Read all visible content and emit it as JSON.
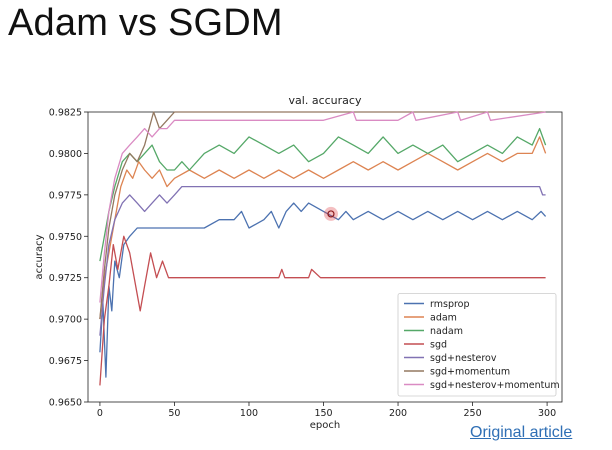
{
  "slide": {
    "title": "Adam vs SGDM",
    "source_link": "Original article"
  },
  "chart_data": {
    "type": "line",
    "title": "val. accuracy",
    "xlabel": "epoch",
    "ylabel": "accuracy",
    "xlim": [
      -8,
      310
    ],
    "ylim": [
      0.965,
      0.9825
    ],
    "xticks": [
      0,
      50,
      100,
      150,
      200,
      250,
      300
    ],
    "yticks": [
      0.965,
      0.9675,
      0.97,
      0.9725,
      0.975,
      0.9775,
      0.98,
      0.9825
    ],
    "ytick_labels": [
      "0.9650",
      "0.9675",
      "0.9700",
      "0.9725",
      "0.9750",
      "0.9775",
      "0.9800",
      "0.9825"
    ],
    "grid": false,
    "legend": "bottom-right",
    "marker": {
      "x": 155,
      "y": 0.97635,
      "color": "#e0474c"
    },
    "series": [
      {
        "name": "rmsprop",
        "color": "#4c72b0",
        "points": [
          [
            0,
            0.968
          ],
          [
            2,
            0.971
          ],
          [
            4,
            0.9665
          ],
          [
            6,
            0.972
          ],
          [
            8,
            0.9705
          ],
          [
            10,
            0.9735
          ],
          [
            13,
            0.9725
          ],
          [
            16,
            0.9745
          ],
          [
            20,
            0.975
          ],
          [
            25,
            0.9755
          ],
          [
            30,
            0.9755
          ],
          [
            40,
            0.9755
          ],
          [
            50,
            0.9755
          ],
          [
            60,
            0.9755
          ],
          [
            70,
            0.9755
          ],
          [
            80,
            0.976
          ],
          [
            90,
            0.976
          ],
          [
            95,
            0.9765
          ],
          [
            100,
            0.9755
          ],
          [
            110,
            0.976
          ],
          [
            115,
            0.9765
          ],
          [
            120,
            0.9755
          ],
          [
            125,
            0.9765
          ],
          [
            130,
            0.977
          ],
          [
            135,
            0.9765
          ],
          [
            140,
            0.977
          ],
          [
            150,
            0.9765
          ],
          [
            160,
            0.976
          ],
          [
            165,
            0.9765
          ],
          [
            170,
            0.976
          ],
          [
            180,
            0.9765
          ],
          [
            190,
            0.976
          ],
          [
            200,
            0.9765
          ],
          [
            210,
            0.976
          ],
          [
            220,
            0.9765
          ],
          [
            230,
            0.976
          ],
          [
            240,
            0.9765
          ],
          [
            250,
            0.976
          ],
          [
            260,
            0.9765
          ],
          [
            270,
            0.976
          ],
          [
            280,
            0.9765
          ],
          [
            290,
            0.976
          ],
          [
            296,
            0.9765
          ],
          [
            299,
            0.9762
          ]
        ]
      },
      {
        "name": "adam",
        "color": "#dd8452",
        "points": [
          [
            0,
            0.97
          ],
          [
            3,
            0.9725
          ],
          [
            6,
            0.974
          ],
          [
            10,
            0.976
          ],
          [
            14,
            0.978
          ],
          [
            18,
            0.979
          ],
          [
            22,
            0.9785
          ],
          [
            26,
            0.9795
          ],
          [
            30,
            0.979
          ],
          [
            35,
            0.9785
          ],
          [
            40,
            0.979
          ],
          [
            45,
            0.978
          ],
          [
            50,
            0.9785
          ],
          [
            60,
            0.979
          ],
          [
            70,
            0.9785
          ],
          [
            80,
            0.979
          ],
          [
            90,
            0.9785
          ],
          [
            100,
            0.979
          ],
          [
            110,
            0.9785
          ],
          [
            120,
            0.979
          ],
          [
            130,
            0.9785
          ],
          [
            140,
            0.979
          ],
          [
            150,
            0.9785
          ],
          [
            160,
            0.979
          ],
          [
            170,
            0.9795
          ],
          [
            180,
            0.979
          ],
          [
            190,
            0.9795
          ],
          [
            200,
            0.979
          ],
          [
            210,
            0.9795
          ],
          [
            220,
            0.98
          ],
          [
            230,
            0.9795
          ],
          [
            240,
            0.979
          ],
          [
            250,
            0.9795
          ],
          [
            260,
            0.98
          ],
          [
            270,
            0.9795
          ],
          [
            280,
            0.98
          ],
          [
            290,
            0.98
          ],
          [
            295,
            0.981
          ],
          [
            299,
            0.98
          ]
        ]
      },
      {
        "name": "nadam",
        "color": "#55a868",
        "points": [
          [
            0,
            0.9735
          ],
          [
            3,
            0.975
          ],
          [
            6,
            0.9765
          ],
          [
            10,
            0.978
          ],
          [
            15,
            0.9795
          ],
          [
            20,
            0.98
          ],
          [
            25,
            0.9795
          ],
          [
            30,
            0.98
          ],
          [
            35,
            0.9805
          ],
          [
            40,
            0.9795
          ],
          [
            45,
            0.979
          ],
          [
            50,
            0.979
          ],
          [
            55,
            0.9795
          ],
          [
            60,
            0.979
          ],
          [
            70,
            0.98
          ],
          [
            80,
            0.9805
          ],
          [
            90,
            0.98
          ],
          [
            100,
            0.981
          ],
          [
            110,
            0.9805
          ],
          [
            120,
            0.98
          ],
          [
            130,
            0.9805
          ],
          [
            140,
            0.9795
          ],
          [
            150,
            0.98
          ],
          [
            160,
            0.981
          ],
          [
            170,
            0.9805
          ],
          [
            180,
            0.98
          ],
          [
            190,
            0.981
          ],
          [
            200,
            0.98
          ],
          [
            210,
            0.9805
          ],
          [
            220,
            0.98
          ],
          [
            230,
            0.9805
          ],
          [
            240,
            0.9795
          ],
          [
            250,
            0.98
          ],
          [
            260,
            0.9805
          ],
          [
            270,
            0.98
          ],
          [
            280,
            0.981
          ],
          [
            290,
            0.9805
          ],
          [
            295,
            0.9815
          ],
          [
            299,
            0.9805
          ]
        ]
      },
      {
        "name": "sgd",
        "color": "#c44e52",
        "points": [
          [
            0,
            0.966
          ],
          [
            3,
            0.97
          ],
          [
            6,
            0.972
          ],
          [
            9,
            0.9745
          ],
          [
            12,
            0.973
          ],
          [
            16,
            0.975
          ],
          [
            20,
            0.974
          ],
          [
            24,
            0.972
          ],
          [
            27,
            0.9705
          ],
          [
            30,
            0.972
          ],
          [
            34,
            0.974
          ],
          [
            38,
            0.9725
          ],
          [
            42,
            0.9735
          ],
          [
            46,
            0.9725
          ],
          [
            50,
            0.9725
          ],
          [
            60,
            0.9725
          ],
          [
            100,
            0.9725
          ],
          [
            120,
            0.9725
          ],
          [
            122,
            0.973
          ],
          [
            124,
            0.9725
          ],
          [
            140,
            0.9725
          ],
          [
            142,
            0.973
          ],
          [
            148,
            0.9725
          ],
          [
            200,
            0.9725
          ],
          [
            250,
            0.9725
          ],
          [
            299,
            0.9725
          ]
        ]
      },
      {
        "name": "sgd+nesterov",
        "color": "#8172b3",
        "points": [
          [
            0,
            0.969
          ],
          [
            3,
            0.972
          ],
          [
            6,
            0.9745
          ],
          [
            10,
            0.976
          ],
          [
            15,
            0.977
          ],
          [
            20,
            0.9775
          ],
          [
            25,
            0.977
          ],
          [
            30,
            0.9765
          ],
          [
            35,
            0.977
          ],
          [
            40,
            0.9775
          ],
          [
            45,
            0.977
          ],
          [
            50,
            0.9775
          ],
          [
            55,
            0.978
          ],
          [
            60,
            0.978
          ],
          [
            100,
            0.978
          ],
          [
            150,
            0.978
          ],
          [
            200,
            0.978
          ],
          [
            250,
            0.978
          ],
          [
            295,
            0.978
          ],
          [
            297,
            0.9775
          ],
          [
            299,
            0.9775
          ]
        ]
      },
      {
        "name": "sgd+momentum",
        "color": "#937860",
        "points": [
          [
            0,
            0.97
          ],
          [
            3,
            0.973
          ],
          [
            6,
            0.9755
          ],
          [
            10,
            0.9775
          ],
          [
            15,
            0.979
          ],
          [
            20,
            0.98
          ],
          [
            25,
            0.9795
          ],
          [
            30,
            0.9805
          ],
          [
            33,
            0.9815
          ],
          [
            36,
            0.9825
          ],
          [
            40,
            0.9815
          ],
          [
            45,
            0.982
          ],
          [
            50,
            0.9825
          ],
          [
            55,
            0.9825
          ],
          [
            100,
            0.9825
          ],
          [
            150,
            0.9825
          ],
          [
            200,
            0.9825
          ],
          [
            250,
            0.9825
          ],
          [
            299,
            0.9825
          ]
        ]
      },
      {
        "name": "sgd+nesterov+momentum",
        "color": "#da8bc3",
        "points": [
          [
            0,
            0.971
          ],
          [
            3,
            0.974
          ],
          [
            6,
            0.9765
          ],
          [
            10,
            0.9785
          ],
          [
            15,
            0.98
          ],
          [
            20,
            0.9805
          ],
          [
            25,
            0.981
          ],
          [
            30,
            0.9815
          ],
          [
            35,
            0.981
          ],
          [
            40,
            0.9815
          ],
          [
            45,
            0.9815
          ],
          [
            50,
            0.982
          ],
          [
            100,
            0.982
          ],
          [
            150,
            0.982
          ],
          [
            170,
            0.9825
          ],
          [
            172,
            0.982
          ],
          [
            200,
            0.982
          ],
          [
            210,
            0.9825
          ],
          [
            212,
            0.982
          ],
          [
            240,
            0.9825
          ],
          [
            242,
            0.982
          ],
          [
            260,
            0.9825
          ],
          [
            262,
            0.982
          ],
          [
            299,
            0.9825
          ]
        ]
      }
    ]
  }
}
